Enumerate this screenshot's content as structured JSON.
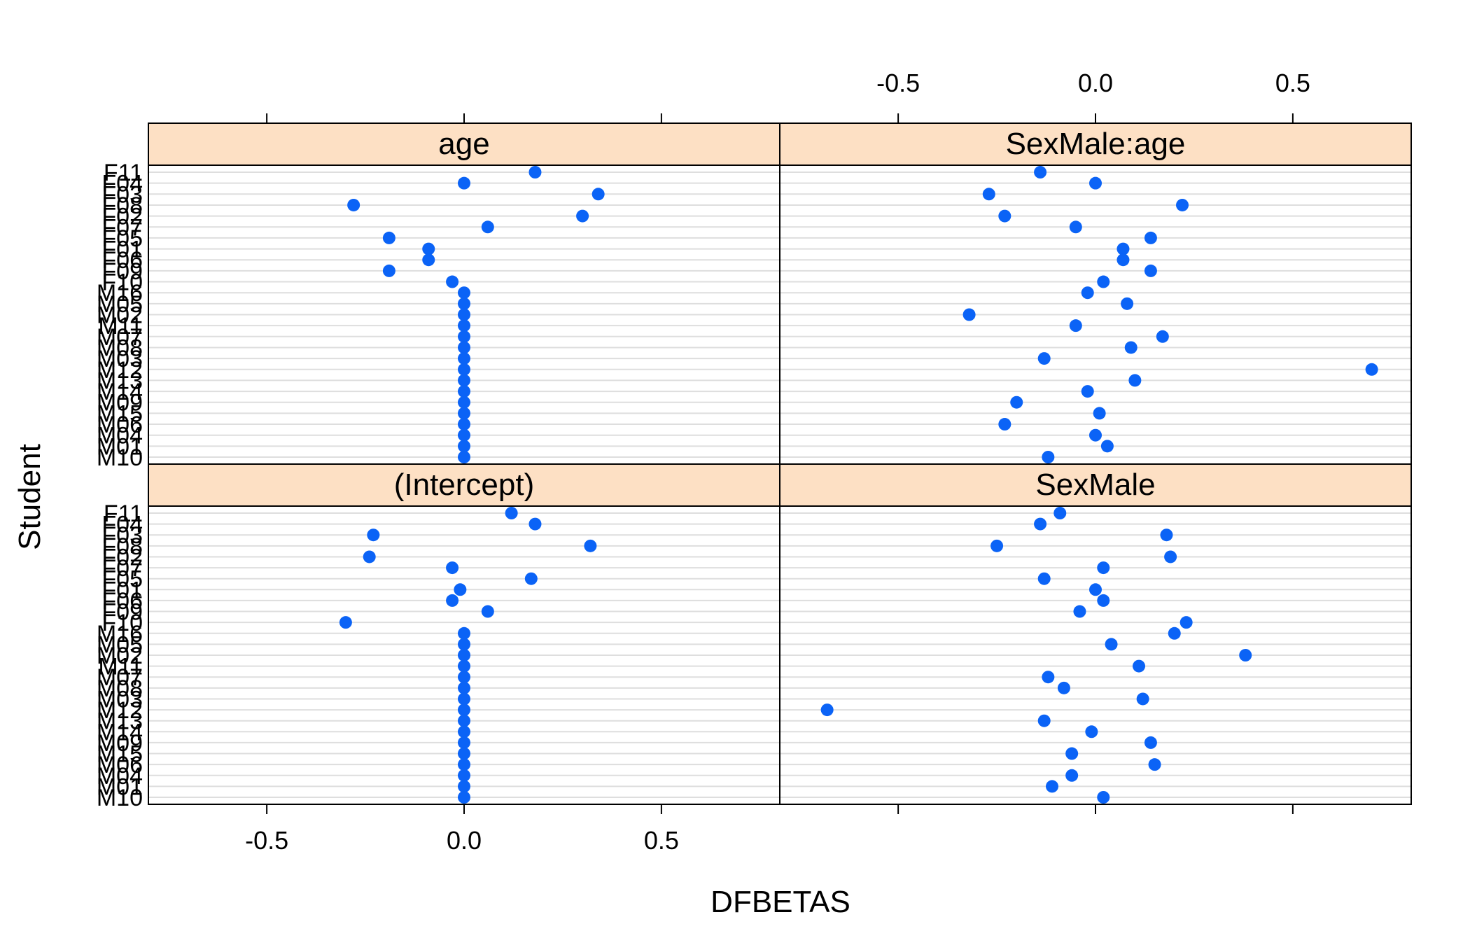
{
  "chart_data": {
    "type": "scatter",
    "xlabel": "DFBETAS",
    "ylabel": "Student",
    "xlim": [
      -0.8,
      0.8
    ],
    "x_ticks": [
      -0.5,
      0.0,
      0.5
    ],
    "x_tick_labels": [
      "-0.5",
      "0.0",
      "0.5"
    ],
    "grid": true,
    "point_color": "#0b63f6",
    "strip_color": "#fde0c4",
    "gridline_color": "#dedede",
    "students": [
      "F11",
      "F04",
      "F03",
      "F08",
      "F02",
      "F07",
      "F05",
      "F01",
      "F06",
      "F09",
      "F10",
      "M16",
      "M05",
      "M02",
      "M11",
      "M07",
      "M08",
      "M03",
      "M12",
      "M13",
      "M14",
      "M09",
      "M15",
      "M06",
      "M04",
      "M01",
      "M10"
    ],
    "panels": [
      {
        "name": "age",
        "values": [
          0.18,
          0.0,
          0.34,
          -0.28,
          0.3,
          0.06,
          -0.19,
          -0.09,
          -0.09,
          -0.19,
          -0.03,
          0,
          0,
          0,
          0,
          0,
          0,
          0,
          0,
          0,
          0,
          0,
          0,
          0,
          0,
          0,
          0
        ]
      },
      {
        "name": "SexMale:age",
        "values": [
          -0.14,
          0.0,
          -0.27,
          0.22,
          -0.23,
          -0.05,
          0.14,
          0.07,
          0.07,
          0.14,
          0.02,
          -0.02,
          0.08,
          -0.32,
          -0.05,
          0.17,
          0.09,
          -0.13,
          0.7,
          0.1,
          -0.02,
          -0.2,
          0.01,
          -0.23,
          0.0,
          0.03,
          -0.12
        ]
      },
      {
        "name": "(Intercept)",
        "values": [
          0.12,
          0.18,
          -0.23,
          0.32,
          -0.24,
          -0.03,
          0.17,
          -0.01,
          -0.03,
          0.06,
          -0.3,
          0,
          0,
          0,
          0,
          0,
          0,
          0,
          0,
          0,
          0,
          0,
          0,
          0,
          0,
          0,
          0
        ]
      },
      {
        "name": "SexMale",
        "values": [
          -0.09,
          -0.14,
          0.18,
          -0.25,
          0.19,
          0.02,
          -0.13,
          0.0,
          0.02,
          -0.04,
          0.23,
          0.2,
          0.04,
          0.38,
          0.11,
          -0.12,
          -0.08,
          0.12,
          -0.68,
          -0.13,
          -0.01,
          0.14,
          -0.06,
          0.15,
          -0.06,
          -0.11,
          0.02
        ]
      }
    ]
  }
}
